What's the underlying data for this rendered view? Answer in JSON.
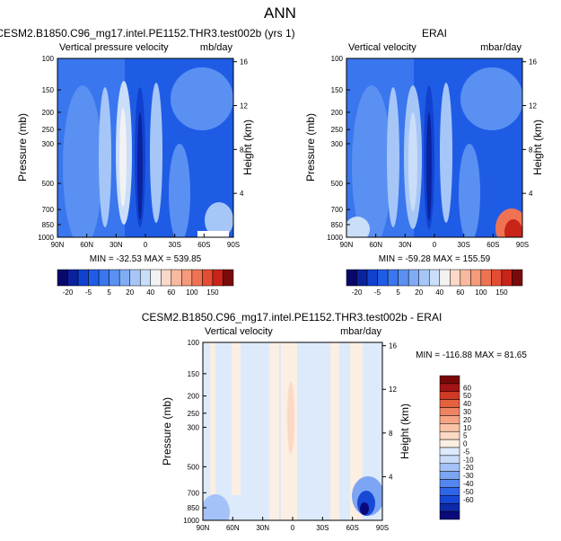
{
  "figure": {
    "title": "ANN",
    "panel_titles": [
      "CESM2.B1850.C96_mg17.intel.PE1152.THR3.test002b (yrs 1)",
      "ERAI",
      "CESM2.B1850.C96_mg17.intel.PE1152.THR3.test002b - ERAI"
    ]
  },
  "colors": {
    "abs_palette": [
      "#08086b",
      "#0a229c",
      "#1141cf",
      "#1f5ce6",
      "#3a76ee",
      "#5a90f2",
      "#80acf5",
      "#a6c6f8",
      "#cadef9",
      "#f2f2f2",
      "#fbd8c8",
      "#f8b99e",
      "#f59a7a",
      "#ef7353",
      "#e44d33",
      "#c8241a",
      "#7a0b0b"
    ],
    "diff_palette": [
      "#0a0a7a",
      "#0d2ba8",
      "#1749d6",
      "#2f66e8",
      "#5586ef",
      "#7ca5f4",
      "#a4c2f7",
      "#cbdcf9",
      "#ddeafb",
      "#fbeee2",
      "#fcd9c4",
      "#fac3a5",
      "#f6a584",
      "#f08462",
      "#e5613f",
      "#cf3a26",
      "#a31414",
      "#7a0707"
    ]
  },
  "chart_data": [
    {
      "type": "heatmap",
      "title": "CESM2.B1850.C96_mg17.intel.PE1152.THR3.test002b (yrs 1)",
      "left_label": "Vertical pressure velocity",
      "right_label": "mb/day",
      "xlabel": "",
      "ylabel": "Pressure (mb)",
      "y2label": "Height (km)",
      "x_ticks": [
        "90N",
        "60N",
        "30N",
        "0",
        "30S",
        "60S",
        "90S"
      ],
      "y_ticks": [
        "100",
        "150",
        "200",
        "250",
        "300",
        "500",
        "700",
        "850",
        "1000"
      ],
      "y_tick_values": [
        100,
        150,
        200,
        250,
        300,
        500,
        700,
        850,
        1000
      ],
      "y2_ticks": [
        "16",
        "12",
        "8",
        "4"
      ],
      "y2_tick_values": [
        16,
        12,
        8,
        4
      ],
      "stats": "MIN = -32.53   MAX = 539.85",
      "colorbar": {
        "labels": [
          "-20",
          "-5",
          "5",
          "20",
          "40",
          "60",
          "100",
          "150"
        ],
        "levels": [
          -20,
          -5,
          5,
          20,
          40,
          60,
          100,
          150
        ]
      }
    },
    {
      "type": "heatmap",
      "title": "ERAI",
      "left_label": "Vertical velocity",
      "right_label": "mbar/day",
      "xlabel": "",
      "ylabel": "Pressure (mb)",
      "y2label": "Height (km)",
      "x_ticks": [
        "90N",
        "60N",
        "30N",
        "0",
        "30S",
        "60S",
        "90S"
      ],
      "y_ticks": [
        "100",
        "150",
        "200",
        "250",
        "300",
        "500",
        "700",
        "850",
        "1000"
      ],
      "y_tick_values": [
        100,
        150,
        200,
        250,
        300,
        500,
        700,
        850,
        1000
      ],
      "y2_ticks": [
        "16",
        "12",
        "8",
        "4"
      ],
      "y2_tick_values": [
        16,
        12,
        8,
        4
      ],
      "stats": "MIN = -59.28   MAX = 155.59",
      "colorbar": {
        "labels": [
          "-20",
          "-5",
          "5",
          "20",
          "40",
          "60",
          "100",
          "150"
        ],
        "levels": [
          -20,
          -5,
          5,
          20,
          40,
          60,
          100,
          150
        ]
      }
    },
    {
      "type": "heatmap",
      "title": "CESM2.B1850.C96_mg17.intel.PE1152.THR3.test002b - ERAI",
      "left_label": "Vertical velocity",
      "right_label": "mbar/day",
      "xlabel": "",
      "ylabel": "Pressure (mb)",
      "y2label": "Height (km)",
      "x_ticks": [
        "90N",
        "60N",
        "30N",
        "0",
        "30S",
        "60S",
        "90S"
      ],
      "y_ticks": [
        "100",
        "150",
        "200",
        "250",
        "300",
        "500",
        "700",
        "850",
        "1000"
      ],
      "y_tick_values": [
        100,
        150,
        200,
        250,
        300,
        500,
        700,
        850,
        1000
      ],
      "y2_ticks": [
        "16",
        "12",
        "8",
        "4"
      ],
      "y2_tick_values": [
        16,
        12,
        8,
        4
      ],
      "stats": "MIN = -116.88   MAX =  81.65",
      "colorbar": {
        "labels": [
          "60",
          "50",
          "40",
          "30",
          "20",
          "10",
          "5",
          "0",
          "-5",
          "-10",
          "-20",
          "-30",
          "-40",
          "-50",
          "-60"
        ],
        "levels": [
          60,
          50,
          40,
          30,
          20,
          10,
          5,
          0,
          -5,
          -10,
          -20,
          -30,
          -40,
          -50,
          -60
        ]
      }
    }
  ]
}
